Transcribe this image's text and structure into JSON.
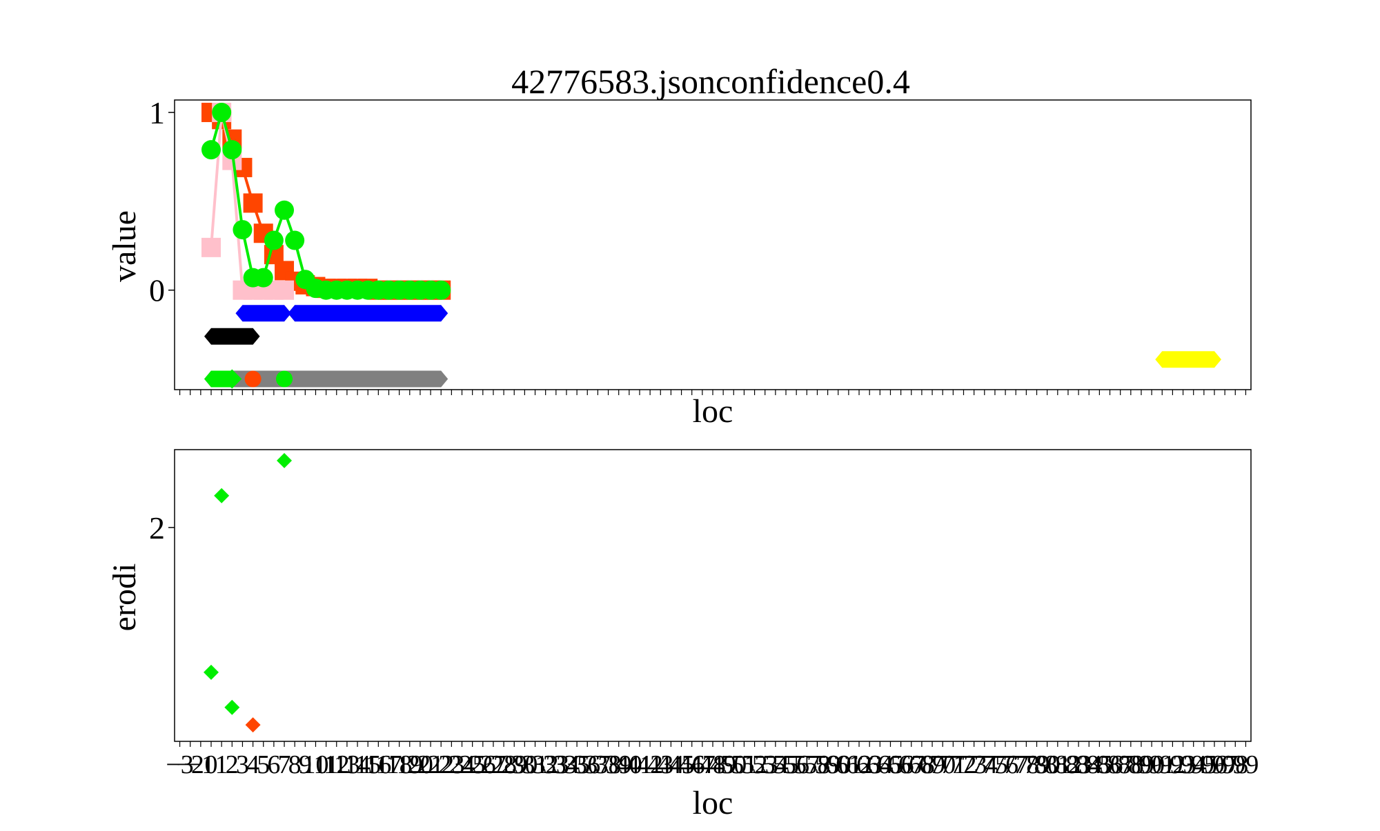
{
  "title": "42776583.jsonconfidence0.4",
  "chart_data": [
    {
      "type": "line",
      "xlabel": "loc",
      "ylabel": "value",
      "xlim": [
        -3.5,
        99.5
      ],
      "ylim": [
        -0.56,
        1.07
      ],
      "yticks": [
        {
          "v": 0,
          "label": "0"
        },
        {
          "v": 1,
          "label": "1"
        }
      ],
      "series": [
        {
          "marker": "square",
          "color": "#ff4500",
          "points": [
            [
              0,
              1.0
            ],
            [
              1,
              0.96
            ],
            [
              2,
              0.85
            ],
            [
              3,
              0.69
            ],
            [
              4,
              0.49
            ],
            [
              5,
              0.32
            ],
            [
              6,
              0.2
            ],
            [
              7,
              0.11
            ],
            [
              8,
              0.05
            ],
            [
              9,
              0.03
            ],
            [
              10,
              0.02
            ],
            [
              11,
              0.01
            ],
            [
              12,
              0.01
            ],
            [
              13,
              0.01
            ],
            [
              14,
              0.01
            ],
            [
              15,
              0.01
            ],
            [
              16,
              0.0
            ],
            [
              17,
              0.0
            ],
            [
              18,
              0.0
            ],
            [
              19,
              0.0
            ],
            [
              20,
              0.0
            ],
            [
              21,
              0.0
            ],
            [
              22,
              0.0
            ]
          ]
        },
        {
          "marker": "square",
          "color": "#ffc0cb",
          "points": [
            [
              0,
              0.24
            ],
            [
              1,
              1.0
            ],
            [
              2,
              0.73
            ],
            [
              3,
              0.0
            ],
            [
              4,
              0.0
            ],
            [
              5,
              0.0
            ],
            [
              6,
              0.0
            ],
            [
              7,
              0.0
            ]
          ]
        },
        {
          "marker": "circle",
          "color": "#00ee00",
          "points": [
            [
              0,
              0.79
            ],
            [
              1,
              1.0
            ],
            [
              2,
              0.79
            ],
            [
              3,
              0.34
            ],
            [
              4,
              0.07
            ],
            [
              5,
              0.07
            ],
            [
              6,
              0.28
            ],
            [
              7,
              0.45
            ],
            [
              8,
              0.28
            ],
            [
              9,
              0.06
            ],
            [
              10,
              0.01
            ],
            [
              11,
              0.0
            ],
            [
              12,
              0.0
            ],
            [
              13,
              0.0
            ],
            [
              14,
              0.0
            ],
            [
              15,
              0.0
            ],
            [
              16,
              0.0
            ],
            [
              17,
              0.0
            ],
            [
              18,
              0.0
            ],
            [
              19,
              0.0
            ],
            [
              20,
              0.0
            ],
            [
              21,
              0.0
            ],
            [
              22,
              0.0
            ]
          ]
        }
      ],
      "segments": [
        {
          "color": "#0000ff",
          "y": -0.13,
          "x0": 3,
          "x1": 7
        },
        {
          "color": "#0000ff",
          "y": -0.13,
          "x0": 8,
          "x1": 22
        },
        {
          "color": "#000000",
          "y": -0.26,
          "x0": 0,
          "x1": 4
        },
        {
          "color": "#808080",
          "y": -0.5,
          "x0": 0,
          "x1": 22
        },
        {
          "color": "#00ee00",
          "y": -0.5,
          "x0": 0,
          "x1": 2
        },
        {
          "color": "#ffff00",
          "y": -0.39,
          "x0": 91,
          "x1": 96
        }
      ],
      "dots": [
        {
          "color": "#ff4500",
          "marker": "circle",
          "x": 4,
          "y": -0.5
        },
        {
          "color": "#00ee00",
          "marker": "circle",
          "x": 7,
          "y": -0.5
        },
        {
          "color": "#00ee00",
          "marker": "diamond",
          "x": 2,
          "y": -0.5
        }
      ]
    },
    {
      "type": "scatter",
      "xlabel": "loc",
      "ylabel": "erodi",
      "xlim": [
        -3.5,
        99.5
      ],
      "ylim": [
        0.05,
        2.71
      ],
      "yticks": [
        {
          "v": 2,
          "label": "2"
        }
      ],
      "points": [
        {
          "x": 0,
          "y": 0.68,
          "color": "#00ee00"
        },
        {
          "x": 1,
          "y": 2.29,
          "color": "#00ee00"
        },
        {
          "x": 2,
          "y": 0.36,
          "color": "#00ee00"
        },
        {
          "x": 4,
          "y": 0.2,
          "color": "#ff4500"
        },
        {
          "x": 7,
          "y": 2.61,
          "color": "#00ee00"
        }
      ],
      "xtick_labels": [
        "−3",
        "−2",
        "−1",
        "0",
        "1",
        "2",
        "3",
        "4",
        "5",
        "6",
        "7",
        "8",
        "9",
        "10",
        "11",
        "12",
        "13",
        "14",
        "15",
        "16",
        "17",
        "18",
        "19",
        "20",
        "21",
        "22",
        "23",
        "24",
        "25",
        "26",
        "27",
        "28",
        "29",
        "30",
        "31",
        "32",
        "33",
        "34",
        "35",
        "36",
        "37",
        "38",
        "39",
        "40",
        "41",
        "42",
        "43",
        "44",
        "45",
        "46",
        "47",
        "48",
        "49",
        "50",
        "51",
        "52",
        "53",
        "54",
        "55",
        "56",
        "57",
        "58",
        "59",
        "60",
        "61",
        "62",
        "63",
        "64",
        "65",
        "66",
        "67",
        "68",
        "69",
        "70",
        "71",
        "72",
        "73",
        "74",
        "75",
        "76",
        "77",
        "78",
        "79",
        "80",
        "81",
        "82",
        "83",
        "84",
        "85",
        "86",
        "87",
        "88",
        "89",
        "90",
        "91",
        "92",
        "93",
        "94",
        "95",
        "96",
        "97",
        "98",
        "99"
      ]
    }
  ]
}
